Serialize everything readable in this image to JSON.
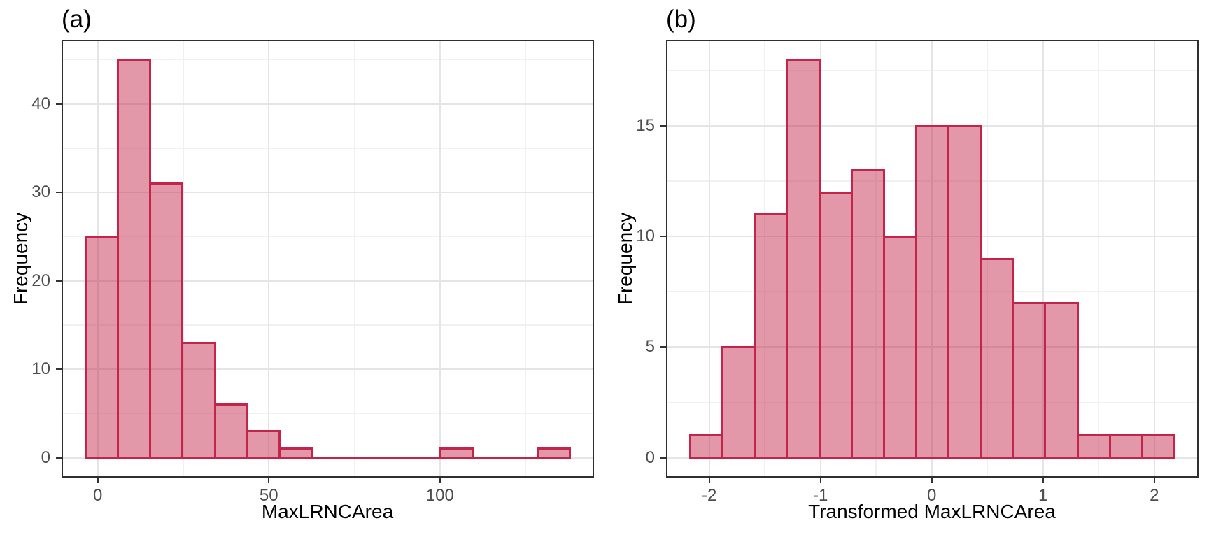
{
  "figure": {
    "tags": [
      "(a)",
      "(b)"
    ],
    "colors": {
      "background": "#FFFFFF",
      "bar_fill_rgba": "rgba(195,36,73,0.47)",
      "bar_stroke": "#C32449",
      "grid_major": "#E3E5E6",
      "grid_minor": "#F0F1F2",
      "panel_border": "#2F2F2F",
      "tick_mark": "#333333",
      "tick_label": "#4D4D4D",
      "axis_title": "#000000"
    }
  },
  "chart_data": [
    {
      "type": "bar",
      "variant": "histogram",
      "tag": "(a)",
      "xlabel": "MaxLRNCArea",
      "ylabel": "Frequency",
      "bin_start": -3.5,
      "bin_width": 9.43,
      "counts": [
        25,
        45,
        31,
        13,
        6,
        3,
        1,
        0,
        0,
        0,
        0,
        1,
        0,
        0,
        1
      ],
      "x_ticks": [
        0,
        50,
        100
      ],
      "x_minor": [
        25,
        75,
        125
      ],
      "y_ticks": [
        0,
        10,
        20,
        30,
        40
      ],
      "y_minor": [
        5,
        15,
        25,
        35,
        45
      ],
      "xlim": [
        -10.57,
        145.02
      ],
      "ylim": [
        -2.25,
        47.25
      ],
      "grid": true,
      "legend_position": "none"
    },
    {
      "type": "bar",
      "variant": "histogram",
      "tag": "(b)",
      "xlabel": "Transformed MaxLRNCArea",
      "ylabel": "Frequency",
      "bin_start": -2.17,
      "bin_width": 0.29,
      "counts": [
        1,
        5,
        11,
        18,
        12,
        13,
        10,
        15,
        15,
        9,
        7,
        7,
        1,
        1,
        1
      ],
      "x_ticks": [
        -2,
        -1,
        0,
        1,
        2
      ],
      "x_minor": [
        -1.5,
        -0.5,
        0.5,
        1.5
      ],
      "y_ticks": [
        0,
        5,
        10,
        15
      ],
      "y_minor": [
        2.5,
        7.5,
        12.5,
        17.5
      ],
      "xlim": [
        -2.3875,
        2.3975
      ],
      "ylim": [
        -0.9,
        18.9
      ],
      "grid": true,
      "legend_position": "none"
    }
  ]
}
